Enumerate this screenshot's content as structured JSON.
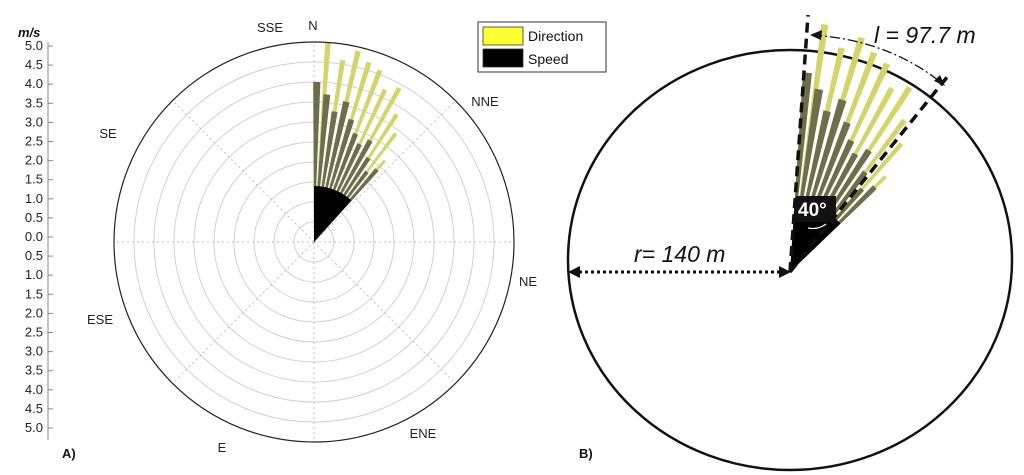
{
  "chart_data": [
    {
      "panel": "A)",
      "type": "polar-bar",
      "ylabel": "m/s",
      "r_ticks": [
        "5.0",
        "4.5",
        "4.0",
        "3.5",
        "3.0",
        "2.5",
        "2.0",
        "1.5",
        "1.0",
        "0.5",
        "0.0",
        "0.5",
        "1.0",
        "1.5",
        "2.0",
        "2.5",
        "3.0",
        "3.5",
        "4.0",
        "4.5",
        "5.0"
      ],
      "rlim": [
        0,
        5.0
      ],
      "grid": true,
      "directions": [
        "N",
        "NNE",
        "NE",
        "ENE",
        "E",
        "ESE",
        "SE",
        "SSE"
      ],
      "legend": {
        "position": "top-right",
        "entries": [
          {
            "name": "Direction",
            "color": "#ffff33"
          },
          {
            "name": "Speed",
            "color": "#000000"
          }
        ]
      },
      "series": [
        {
          "name": "Direction",
          "color": "#d4d46a",
          "values": [
            {
              "angle": 4,
              "r": 5.0
            },
            {
              "angle": 9,
              "r": 4.6
            },
            {
              "angle": 13,
              "r": 4.9
            },
            {
              "angle": 17,
              "r": 4.7
            },
            {
              "angle": 21,
              "r": 4.6
            },
            {
              "angle": 25,
              "r": 4.2
            },
            {
              "angle": 29,
              "r": 4.4
            },
            {
              "angle": 33,
              "r": 3.8
            },
            {
              "angle": 37,
              "r": 3.4
            },
            {
              "angle": 41,
              "r": 2.7
            }
          ]
        },
        {
          "name": "Speed",
          "color": "#000000",
          "values": [
            {
              "angle": 1,
              "r": 4.0
            },
            {
              "angle": 5,
              "r": 3.7
            },
            {
              "angle": 9,
              "r": 3.3
            },
            {
              "angle": 13,
              "r": 3.6
            },
            {
              "angle": 17,
              "r": 3.2
            },
            {
              "angle": 21,
              "r": 2.9
            },
            {
              "angle": 25,
              "r": 2.7
            },
            {
              "angle": 29,
              "r": 2.9
            },
            {
              "angle": 33,
              "r": 2.5
            },
            {
              "angle": 37,
              "r": 2.2
            },
            {
              "angle": 41,
              "r": 2.4
            }
          ]
        }
      ]
    },
    {
      "panel": "B)",
      "type": "diagram",
      "radius_label": "r= 140 m",
      "arc_label": "l = 97.7 m",
      "angle_label": "40°"
    }
  ],
  "colors": {
    "direction": "#ffff33",
    "speed": "#000000",
    "grid": "#bdbdbd"
  }
}
